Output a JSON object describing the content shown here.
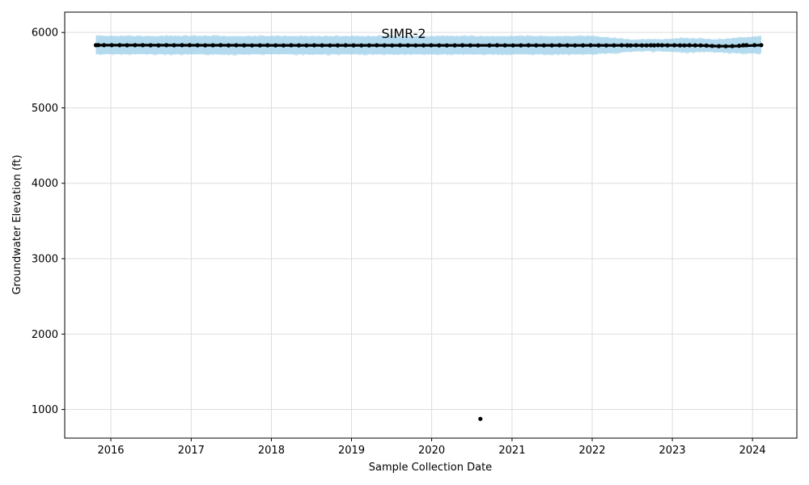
{
  "chart_data": {
    "type": "scatter",
    "title": "SIMR-2",
    "xlabel": "Sample Collection Date",
    "ylabel": "Groundwater Elevation (ft)",
    "xlim": [
      "2015-06-05",
      "2024-07-21"
    ],
    "ylim": [
      620,
      6270
    ],
    "grid": true,
    "x_ticks": [
      "2016",
      "2017",
      "2018",
      "2019",
      "2020",
      "2021",
      "2022",
      "2023",
      "2024"
    ],
    "y_ticks": [
      1000,
      2000,
      3000,
      4000,
      5000,
      6000
    ],
    "colors": {
      "points": "#000000",
      "trend": "#000000",
      "band": "#87c4e3",
      "band_noise": "#a9d6ec",
      "grid": "#dddddd"
    },
    "series": [
      {
        "kind": "points",
        "x": [
          "2015-10-25",
          "2015-11-05",
          "2015-12-01",
          "2016-01-05",
          "2016-02-10",
          "2016-03-15",
          "2016-04-20",
          "2016-05-25",
          "2016-06-30",
          "2016-08-05",
          "2016-09-10",
          "2016-10-15",
          "2016-11-20",
          "2016-12-25",
          "2017-01-30",
          "2017-03-06",
          "2017-04-10",
          "2017-05-15",
          "2017-06-20",
          "2017-07-25",
          "2017-08-30",
          "2017-10-05",
          "2017-11-10",
          "2017-12-15",
          "2018-01-20",
          "2018-02-25",
          "2018-04-01",
          "2018-05-06",
          "2018-06-10",
          "2018-07-15",
          "2018-08-20",
          "2018-09-25",
          "2018-10-30",
          "2018-12-05",
          "2019-01-10",
          "2019-02-15",
          "2019-03-22",
          "2019-04-26",
          "2019-05-31",
          "2019-07-05",
          "2019-08-10",
          "2019-09-15",
          "2019-10-20",
          "2019-11-25",
          "2019-12-30",
          "2020-02-04",
          "2020-03-10",
          "2020-04-15",
          "2020-05-20",
          "2020-06-25",
          "2020-07-30",
          "2020-08-10",
          "2020-09-20",
          "2020-10-25",
          "2020-11-30",
          "2021-01-05",
          "2021-02-10",
          "2021-03-17",
          "2021-04-21",
          "2021-05-26",
          "2021-07-01",
          "2021-08-05",
          "2021-09-10",
          "2021-10-15",
          "2021-11-20",
          "2021-12-25",
          "2022-01-30",
          "2022-03-06",
          "2022-04-10",
          "2022-05-15",
          "2022-06-10",
          "2022-06-25",
          "2022-07-20",
          "2022-08-15",
          "2022-09-05",
          "2022-09-25",
          "2022-10-10",
          "2022-10-28",
          "2022-11-15",
          "2022-12-10",
          "2023-01-10",
          "2023-02-05",
          "2023-02-25",
          "2023-03-20",
          "2023-04-15",
          "2023-05-10",
          "2023-06-05",
          "2023-07-01",
          "2023-08-01",
          "2023-09-01",
          "2023-10-01",
          "2023-11-01",
          "2023-11-20",
          "2023-12-05",
          "2024-01-10",
          "2024-02-10"
        ],
        "y": [
          5832,
          5833,
          5832,
          5831,
          5832,
          5830,
          5831,
          5832,
          5830,
          5829,
          5831,
          5830,
          5832,
          5831,
          5830,
          5829,
          5830,
          5831,
          5829,
          5830,
          5829,
          5828,
          5829,
          5830,
          5829,
          5828,
          5830,
          5829,
          5828,
          5830,
          5829,
          5828,
          5829,
          5830,
          5829,
          5828,
          5829,
          5830,
          5829,
          5828,
          5830,
          5829,
          5828,
          5829,
          5830,
          5829,
          5828,
          5829,
          5830,
          5829,
          5828,
          875,
          5829,
          5830,
          5829,
          5828,
          5829,
          5830,
          5829,
          5828,
          5829,
          5830,
          5829,
          5828,
          5829,
          5830,
          5829,
          5828,
          5829,
          5830,
          5829,
          5828,
          5830,
          5829,
          5828,
          5830,
          5829,
          5831,
          5830,
          5829,
          5830,
          5829,
          5828,
          5830,
          5829,
          5828,
          5826,
          5822,
          5819,
          5818,
          5820,
          5824,
          5830,
          5832,
          5831,
          5833
        ]
      },
      {
        "kind": "trend",
        "x": [
          "2015-10-25",
          "2016-06-01",
          "2017-01-01",
          "2017-07-01",
          "2018-01-01",
          "2018-07-01",
          "2019-01-01",
          "2019-07-01",
          "2020-01-01",
          "2020-07-01",
          "2021-01-01",
          "2021-07-01",
          "2022-01-01",
          "2022-06-25",
          "2022-09-15",
          "2022-11-25",
          "2023-02-15",
          "2023-05-15",
          "2023-07-15",
          "2023-09-15",
          "2023-11-15",
          "2024-02-10"
        ],
        "y": [
          5832,
          5831,
          5830,
          5830,
          5829,
          5829,
          5829,
          5829,
          5829,
          5829,
          5829,
          5829,
          5829,
          5829,
          5829,
          5830,
          5829,
          5827,
          5820,
          5818,
          5822,
          5833
        ]
      },
      {
        "kind": "band",
        "x": [
          "2015-10-25",
          "2016-06-01",
          "2017-01-01",
          "2017-07-01",
          "2018-01-01",
          "2018-07-01",
          "2019-01-01",
          "2019-07-01",
          "2020-01-01",
          "2020-07-01",
          "2021-01-01",
          "2021-07-01",
          "2022-01-01",
          "2022-06-25",
          "2022-09-15",
          "2022-11-25",
          "2023-02-15",
          "2023-05-15",
          "2023-07-15",
          "2023-09-15",
          "2023-11-15",
          "2024-02-10"
        ],
        "lower": [
          5710,
          5712,
          5710,
          5709,
          5711,
          5709,
          5710,
          5708,
          5710,
          5709,
          5708,
          5710,
          5709,
          5745,
          5752,
          5748,
          5735,
          5742,
          5740,
          5730,
          5725,
          5722
        ],
        "upper": [
          5955,
          5952,
          5954,
          5951,
          5953,
          5950,
          5952,
          5951,
          5953,
          5950,
          5952,
          5951,
          5953,
          5905,
          5912,
          5908,
          5925,
          5918,
          5905,
          5918,
          5935,
          5948
        ]
      }
    ]
  }
}
